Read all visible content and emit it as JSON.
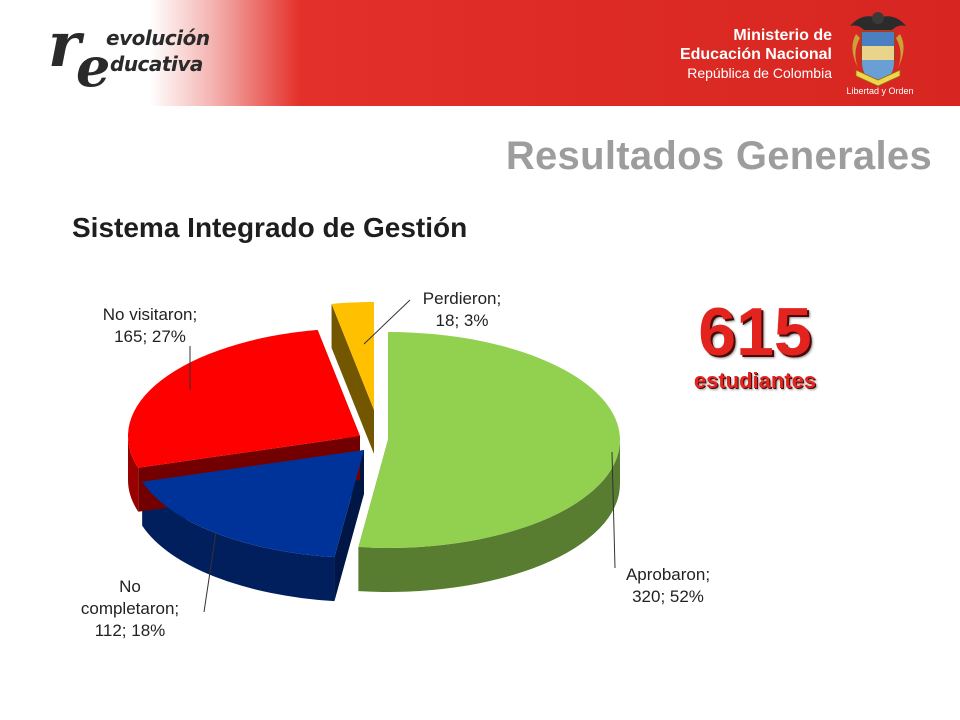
{
  "header": {
    "logo_left": {
      "big_r": "r",
      "big_e": "e",
      "line1": "evolución",
      "line2": "ducativa"
    },
    "ministry": {
      "line1": "Ministerio de",
      "line2": "Educación Nacional",
      "line3": "República de Colombia"
    },
    "motto": "Libertad y Orden",
    "crest_icon": "colombia-coat-of-arms-icon"
  },
  "page_title": "Resultados Generales",
  "subtitle": "Sistema Integrado de Gestión",
  "total": {
    "number": "615",
    "label": "estudiantes"
  },
  "chart_data": {
    "type": "pie",
    "style": "3d-exploded",
    "slices": [
      {
        "name": "Aprobaron",
        "value": 320,
        "percent": 52,
        "color": "#92d050",
        "label_lines": [
          "Aprobaron;",
          "320; 52%"
        ]
      },
      {
        "name": "No completaron",
        "value": 112,
        "percent": 18,
        "color": "#003399",
        "label_lines": [
          "No",
          "completaron;",
          "112; 18%"
        ]
      },
      {
        "name": "No visitaron",
        "value": 165,
        "percent": 27,
        "color": "#ff0000",
        "label_lines": [
          "No visitaron;",
          "165; 27%"
        ]
      },
      {
        "name": "Perdieron",
        "value": 18,
        "percent": 3,
        "color": "#ffc000",
        "label_lines": [
          "Perdieron;",
          "18; 3%"
        ]
      }
    ]
  }
}
